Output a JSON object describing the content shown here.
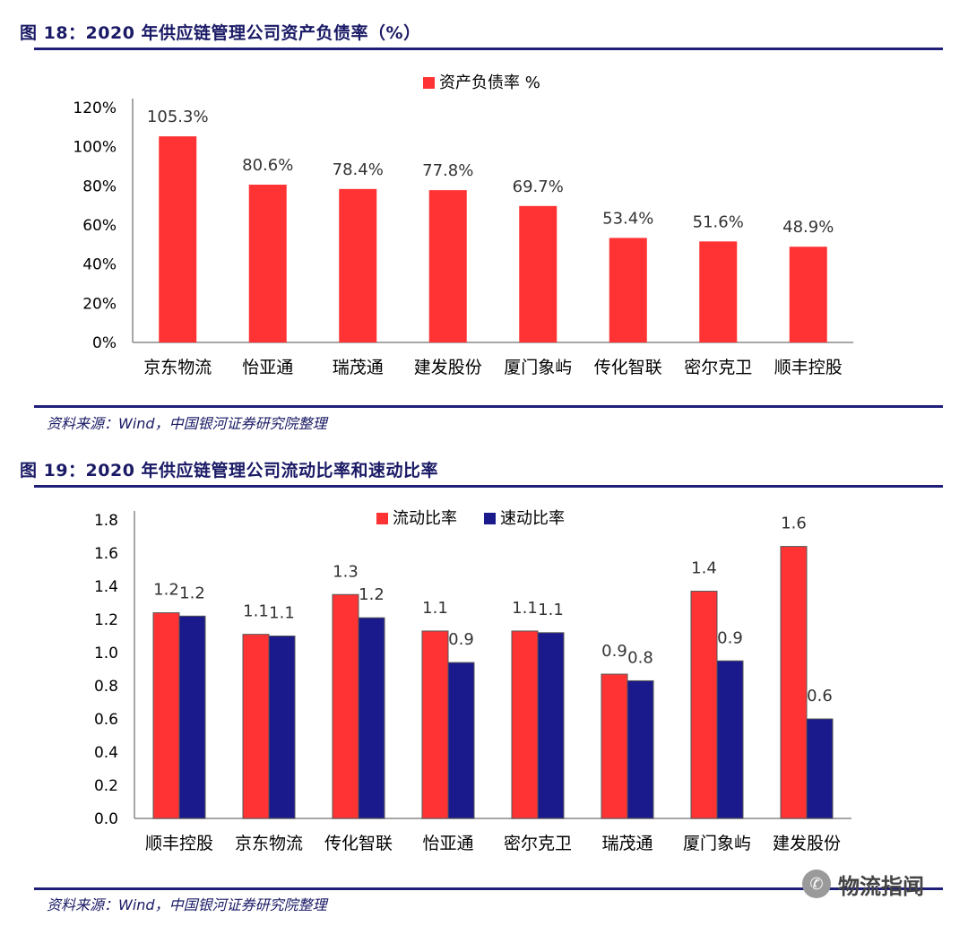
{
  "figure18": {
    "title": "图 18：2020 年供应链管理公司资产负债率（%）",
    "source": "资料来源：Wind，中国银河证券研究院整理"
  },
  "figure19": {
    "title": "图 19：2020 年供应链管理公司流动比率和速动比率",
    "source": "资料来源：Wind，中国银河证券研究院整理"
  },
  "watermark": {
    "icon": "wechat-icon",
    "text": "物流指闻"
  },
  "colors": {
    "red": "#ff3333",
    "navy": "#1a1a8c",
    "rule": "#1f1f7a"
  },
  "chart_data": [
    {
      "type": "bar",
      "title": "",
      "categories": [
        "京东物流",
        "怡亚通",
        "瑞茂通",
        "建发股份",
        "厦门象屿",
        "传化智联",
        "密尔克卫",
        "顺丰控股"
      ],
      "series": [
        {
          "name": "资产负债率 %",
          "values": [
            105.3,
            80.6,
            78.4,
            77.8,
            69.7,
            53.4,
            51.6,
            48.9
          ],
          "labels": [
            "105.3%",
            "80.6%",
            "78.4%",
            "77.8%",
            "69.7%",
            "53.4%",
            "51.6%",
            "48.9%"
          ]
        }
      ],
      "yticks": [
        "0%",
        "20%",
        "40%",
        "60%",
        "80%",
        "100%",
        "120%"
      ],
      "ylim": [
        0,
        120
      ],
      "xlabel": "",
      "ylabel": "",
      "legend": "top-center"
    },
    {
      "type": "bar",
      "title": "",
      "categories": [
        "顺丰控股",
        "京东物流",
        "传化智联",
        "怡亚通",
        "密尔克卫",
        "瑞茂通",
        "厦门象屿",
        "建发股份"
      ],
      "series": [
        {
          "name": "流动比率",
          "values": [
            1.24,
            1.11,
            1.35,
            1.13,
            1.13,
            0.87,
            1.37,
            1.64
          ],
          "labels": [
            "1.2",
            "1.1",
            "1.3",
            "1.1",
            "1.1",
            "0.9",
            "1.4",
            "1.6"
          ]
        },
        {
          "name": "速动比率",
          "values": [
            1.22,
            1.1,
            1.21,
            0.94,
            1.12,
            0.83,
            0.95,
            0.6
          ],
          "labels": [
            "1.2",
            "1.1",
            "1.2",
            "0.9",
            "1.1",
            "0.8",
            "0.9",
            "0.6"
          ]
        }
      ],
      "yticks": [
        "0.0",
        "0.2",
        "0.4",
        "0.6",
        "0.8",
        "1.0",
        "1.2",
        "1.4",
        "1.6",
        "1.8"
      ],
      "ylim": [
        0,
        1.8
      ],
      "xlabel": "",
      "ylabel": "",
      "legend": "top-center"
    }
  ]
}
